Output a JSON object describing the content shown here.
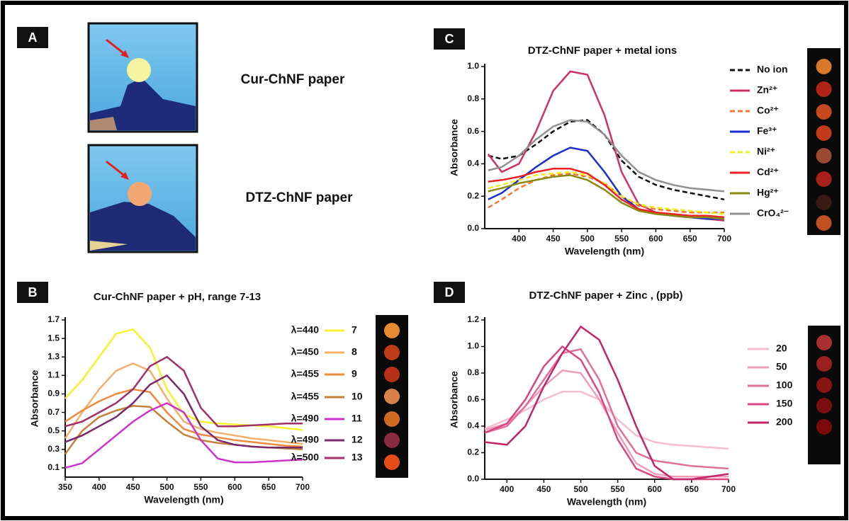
{
  "panel_labels": [
    "A",
    "B",
    "C",
    "D"
  ],
  "photos": [
    {
      "label": "Cur-ChNF paper"
    },
    {
      "label": "DTZ-ChNF paper"
    }
  ],
  "chart_data": [
    {
      "type": "line",
      "title": "Cur-ChNF paper + pH, range 7-13",
      "x_label": "Wavelength (nm)",
      "y_label": "Absorbance",
      "xlim": [
        350,
        700
      ],
      "xticks": [
        350,
        400,
        450,
        500,
        550,
        600,
        650,
        700
      ],
      "ylim": [
        0,
        1.7
      ],
      "yticks": [
        0.1,
        0.3,
        0.5,
        0.7,
        0.9,
        1.1,
        1.3,
        1.5,
        1.7
      ],
      "x": [
        350,
        375,
        400,
        425,
        450,
        475,
        500,
        525,
        550,
        575,
        600,
        625,
        650,
        675,
        700
      ],
      "series": [
        {
          "name": "7",
          "peak_label": "λ=440",
          "color": "#f5f230",
          "values": [
            0.85,
            1.05,
            1.3,
            1.55,
            1.6,
            1.4,
            0.95,
            0.68,
            0.6,
            0.58,
            0.57,
            0.56,
            0.55,
            0.53,
            0.51
          ]
        },
        {
          "name": "8",
          "peak_label": "λ=450",
          "color": "#f4b06a",
          "values": [
            0.42,
            0.7,
            0.95,
            1.15,
            1.23,
            1.15,
            0.85,
            0.6,
            0.52,
            0.48,
            0.45,
            0.42,
            0.4,
            0.38,
            0.36
          ]
        },
        {
          "name": "9",
          "peak_label": "λ=455",
          "color": "#ef8a3e",
          "values": [
            0.6,
            0.72,
            0.82,
            0.9,
            0.95,
            0.92,
            0.7,
            0.52,
            0.46,
            0.43,
            0.4,
            0.38,
            0.36,
            0.34,
            0.33
          ]
        },
        {
          "name": "10",
          "peak_label": "λ=455",
          "color": "#c4803a",
          "values": [
            0.25,
            0.5,
            0.65,
            0.72,
            0.77,
            0.76,
            0.6,
            0.46,
            0.4,
            0.37,
            0.35,
            0.33,
            0.32,
            0.31,
            0.3
          ]
        },
        {
          "name": "11",
          "peak_label": "λ=490",
          "color": "#cc33cc",
          "values": [
            0.1,
            0.15,
            0.3,
            0.45,
            0.6,
            0.72,
            0.8,
            0.7,
            0.4,
            0.2,
            0.16,
            0.16,
            0.17,
            0.18,
            0.19
          ]
        },
        {
          "name": "12",
          "peak_label": "λ=490",
          "color": "#7a2a6a",
          "values": [
            0.38,
            0.45,
            0.55,
            0.65,
            0.8,
            1.0,
            1.1,
            0.9,
            0.55,
            0.4,
            0.35,
            0.33,
            0.32,
            0.32,
            0.32
          ]
        },
        {
          "name": "13",
          "peak_label": "λ=500",
          "color": "#a03068",
          "values": [
            0.55,
            0.6,
            0.7,
            0.8,
            0.95,
            1.2,
            1.3,
            1.15,
            0.75,
            0.55,
            0.55,
            0.56,
            0.57,
            0.58,
            0.58
          ]
        }
      ]
    },
    {
      "type": "line",
      "title": "DTZ-ChNF paper + metal ions",
      "x_label": "Wavelength (nm)",
      "y_label": "Absorbance",
      "xlim": [
        350,
        700
      ],
      "xticks": [
        400,
        450,
        500,
        550,
        600,
        650,
        700
      ],
      "ylim": [
        0,
        1.0
      ],
      "yticks": [
        {
          "value": 0,
          "label": "0.0"
        },
        0.2,
        0.4,
        0.6,
        0.8,
        {
          "value": 1.0,
          "label": "1.0"
        }
      ],
      "x": [
        355,
        375,
        400,
        425,
        450,
        475,
        500,
        525,
        550,
        575,
        600,
        625,
        650,
        675,
        700
      ],
      "series": [
        {
          "name": "No ion",
          "color": "#111111",
          "dashed": true,
          "values": [
            0.45,
            0.43,
            0.45,
            0.52,
            0.6,
            0.66,
            0.67,
            0.58,
            0.42,
            0.32,
            0.27,
            0.24,
            0.22,
            0.2,
            0.18
          ]
        },
        {
          "name": "Zn²⁺",
          "color": "#d0306a",
          "dashed": false,
          "values": [
            0.46,
            0.35,
            0.4,
            0.6,
            0.85,
            0.97,
            0.95,
            0.7,
            0.35,
            0.15,
            0.1,
            0.08,
            0.07,
            0.06,
            0.05
          ]
        },
        {
          "name": "Co²⁺",
          "color": "#f07a30",
          "dashed": true,
          "values": [
            0.13,
            0.18,
            0.25,
            0.3,
            0.33,
            0.34,
            0.32,
            0.28,
            0.2,
            0.14,
            0.12,
            0.11,
            0.1,
            0.1,
            0.1
          ]
        },
        {
          "name": "Fe³⁺",
          "color": "#1a2ed0",
          "dashed": false,
          "values": [
            0.18,
            0.22,
            0.3,
            0.38,
            0.45,
            0.5,
            0.48,
            0.35,
            0.2,
            0.12,
            0.1,
            0.08,
            0.07,
            0.06,
            0.06
          ]
        },
        {
          "name": "Ni²⁺",
          "color": "#f2ef20",
          "dashed": true,
          "values": [
            0.25,
            0.27,
            0.3,
            0.33,
            0.34,
            0.35,
            0.33,
            0.28,
            0.2,
            0.15,
            0.13,
            0.12,
            0.11,
            0.1,
            0.09
          ]
        },
        {
          "name": "Cd²⁺",
          "color": "#f02020",
          "dashed": false,
          "values": [
            0.29,
            0.3,
            0.32,
            0.35,
            0.37,
            0.37,
            0.34,
            0.27,
            0.18,
            0.12,
            0.1,
            0.09,
            0.08,
            0.08,
            0.07
          ]
        },
        {
          "name": "Hg²⁺",
          "color": "#8a8a10",
          "dashed": false,
          "values": [
            0.23,
            0.25,
            0.28,
            0.3,
            0.32,
            0.33,
            0.3,
            0.24,
            0.16,
            0.11,
            0.09,
            0.08,
            0.07,
            0.07,
            0.06
          ]
        },
        {
          "name": "CrO₄²⁻",
          "color": "#909090",
          "dashed": false,
          "values": [
            0.36,
            0.38,
            0.45,
            0.55,
            0.63,
            0.67,
            0.66,
            0.58,
            0.45,
            0.35,
            0.3,
            0.27,
            0.25,
            0.24,
            0.23
          ]
        }
      ]
    },
    {
      "type": "line",
      "title": "DTZ-ChNF paper + Zinc , (ppb)",
      "x_label": "Wavelength (nm)",
      "y_label": "Absorbance",
      "xlim": [
        370,
        700
      ],
      "xticks": [
        400,
        450,
        500,
        550,
        600,
        650,
        700
      ],
      "ylim": [
        0,
        1.2
      ],
      "yticks": [
        {
          "value": 0,
          "label": "0.0"
        },
        0.2,
        0.4,
        0.6,
        0.8,
        {
          "value": 1.0,
          "label": "1.0"
        },
        1.2
      ],
      "x": [
        370,
        400,
        425,
        450,
        475,
        500,
        525,
        550,
        575,
        600,
        625,
        650,
        675,
        700
      ],
      "series": [
        {
          "name": "20",
          "color": "#f6bcd0",
          "values": [
            0.38,
            0.45,
            0.52,
            0.6,
            0.66,
            0.66,
            0.6,
            0.45,
            0.33,
            0.28,
            0.26,
            0.25,
            0.24,
            0.23
          ]
        },
        {
          "name": "50",
          "color": "#ef9cba",
          "values": [
            0.37,
            0.42,
            0.55,
            0.7,
            0.82,
            0.8,
            0.6,
            0.35,
            0.12,
            0.04,
            0.02,
            0.02,
            0.02,
            0.02
          ]
        },
        {
          "name": "100",
          "color": "#e26e9a",
          "values": [
            0.35,
            0.4,
            0.55,
            0.75,
            0.95,
            0.98,
            0.75,
            0.4,
            0.2,
            0.14,
            0.12,
            0.1,
            0.09,
            0.08
          ]
        },
        {
          "name": "150",
          "color": "#d94682",
          "values": [
            0.35,
            0.42,
            0.6,
            0.85,
            1.0,
            0.9,
            0.65,
            0.3,
            0.08,
            0.02,
            0,
            0,
            0,
            0
          ]
        },
        {
          "name": "200",
          "color": "#c2256a",
          "values": [
            0.28,
            0.26,
            0.4,
            0.7,
            0.95,
            1.15,
            1.05,
            0.75,
            0.4,
            0.1,
            0,
            0,
            0.02,
            0.04
          ]
        }
      ]
    }
  ]
}
